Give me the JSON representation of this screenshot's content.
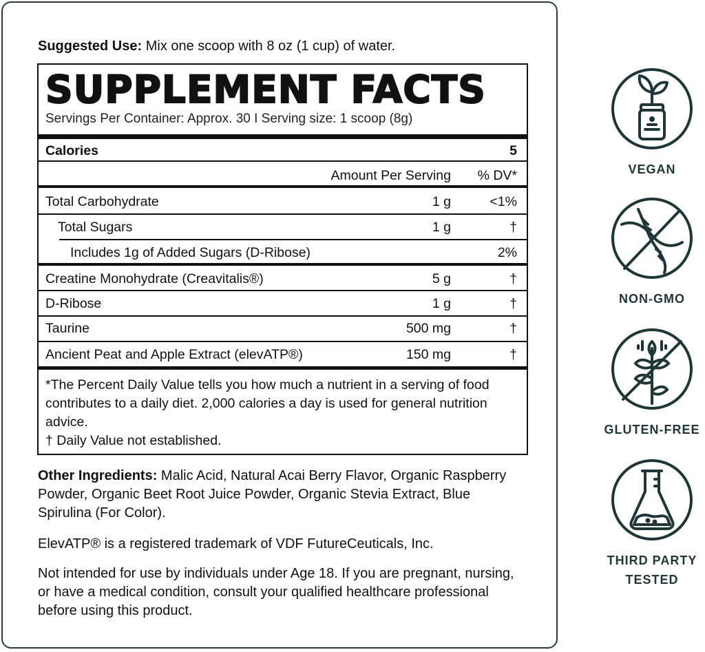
{
  "suggested_use": {
    "label": "Suggested Use:",
    "text": " Mix one scoop with 8 oz (1 cup) of water."
  },
  "facts": {
    "title": "SUPPLEMENT FACTS",
    "servings": "Servings Per Container:  Approx. 30   I   Serving size: 1 scoop (8g)",
    "calories_label": "Calories",
    "calories_value": "5",
    "amount_header": "Amount Per Serving",
    "dv_header": "% DV*",
    "rows": [
      {
        "name": "Total Carbohydrate",
        "amount": "1 g",
        "dv": "<1%"
      },
      {
        "name": "Total Sugars",
        "amount": "1 g",
        "dv": "†"
      },
      {
        "name": "Includes 1g of Added Sugars (D-Ribose)",
        "amount": "",
        "dv": "2%"
      },
      {
        "name": "Creatine Monohydrate (Creavitalis®)",
        "amount": "5 g",
        "dv": "†"
      },
      {
        "name": "D-Ribose",
        "amount": "1 g",
        "dv": "†"
      },
      {
        "name": "Taurine",
        "amount": "500 mg",
        "dv": "†"
      },
      {
        "name": "Ancient Peat and Apple Extract (elevATP®)",
        "amount": "150 mg",
        "dv": "†"
      }
    ],
    "footnote1": "*The Percent Daily Value tells you how much a nutrient in a serving of food contributes to a daily diet. 2,000 calories a day is used for general nutrition advice.",
    "footnote2": "† Daily Value not established."
  },
  "other_ingredients": {
    "label": "Other Ingredients:",
    "text": " Malic Acid, Natural Acai Berry Flavor, Organic Raspberry Powder, Organic Beet Root Juice Powder, Organic Stevia Extract, Blue Spirulina (For Color)."
  },
  "trademark": "ElevATP® is a registered trademark of VDF FutureCeuticals, Inc.",
  "warning": "Not intended for use by individuals under Age 18. If you are pregnant, nursing, or have a medical condition, consult your qualified healthcare professional before using this product.",
  "badges": [
    {
      "label": "VEGAN",
      "icon": "plant-jar-icon"
    },
    {
      "label": "NON-GMO",
      "icon": "crossed-dna-icon"
    },
    {
      "label": "GLUTEN-FREE",
      "icon": "crossed-wheat-icon"
    },
    {
      "label": "THIRD PARTY TESTED",
      "icon": "flask-icon"
    }
  ],
  "icon_color": "#1f3536"
}
